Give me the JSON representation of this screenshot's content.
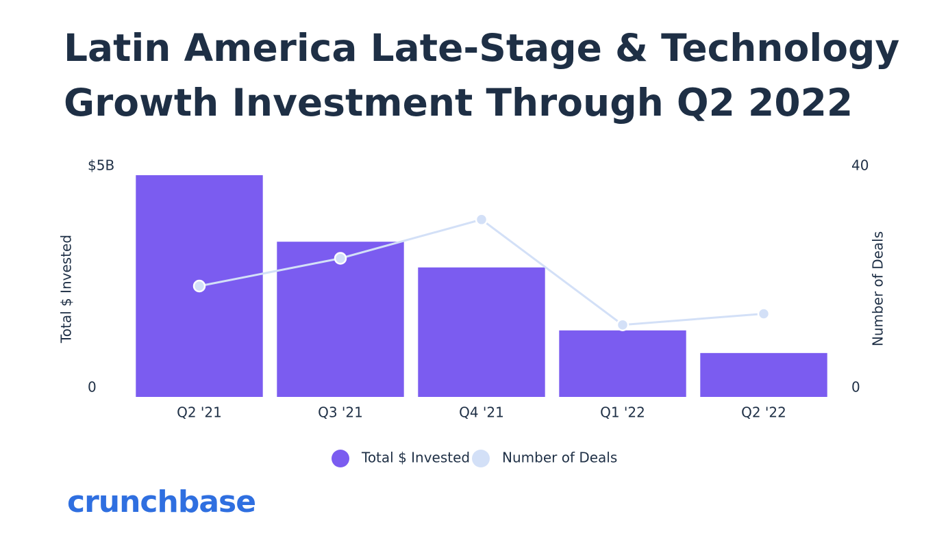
{
  "chart_data": {
    "type": "bar_line",
    "title": "Latin America Late-Stage & Technology Growth Investment Through Q2 2022",
    "categories": [
      "Q2 '21",
      "Q3 '21",
      "Q4 '21",
      "Q1 '22",
      "Q2 '22"
    ],
    "series": [
      {
        "name": "Total $ Invested",
        "color": "#7b5cf0",
        "type": "bar",
        "values": [
          5.0,
          3.5,
          2.92,
          1.5,
          0.99
        ]
      },
      {
        "name": "Number of Deals",
        "color": "#d3e0f7",
        "type": "line",
        "axis": "y2",
        "values": [
          20,
          25,
          32,
          13,
          15
        ]
      }
    ],
    "ylabel": "Total $ Invested",
    "y2label": "Number of Deals",
    "ylim": [
      0,
      5
    ],
    "yticks": [
      0,
      {
        "value": 5,
        "label": "$5B"
      }
    ],
    "y2lim": [
      0,
      40
    ],
    "y2ticks": [
      0,
      40
    ],
    "legend": "bottom"
  },
  "logo": "crunchbase"
}
